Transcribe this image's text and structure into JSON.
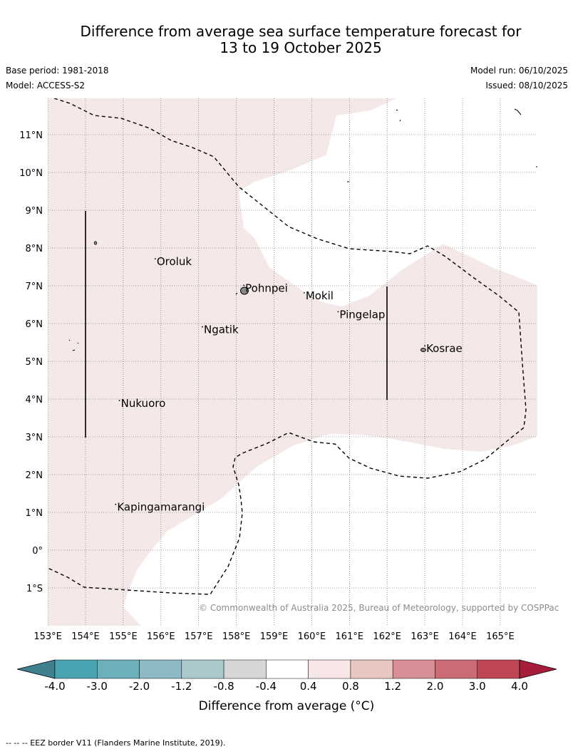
{
  "header": {
    "title_line1": "Difference from average sea surface temperature forecast for",
    "title_line2": "13 to 19 October 2025",
    "base_period": "Base period: 1981-2018",
    "model": "Model: ACCESS-S2",
    "model_run": "Model run: 06/10/2025",
    "issued": "Issued: 08/10/2025"
  },
  "map": {
    "lon_ticks": [
      "153°E",
      "154°E",
      "155°E",
      "156°E",
      "157°E",
      "158°E",
      "159°E",
      "160°E",
      "161°E",
      "162°E",
      "163°E",
      "164°E",
      "165°E"
    ],
    "lat_ticks": [
      "11°N",
      "10°N",
      "9°N",
      "8°N",
      "7°N",
      "6°N",
      "5°N",
      "4°N",
      "3°N",
      "2°N",
      "1°N",
      "0°",
      "1°S"
    ],
    "places": [
      {
        "name": "Oroluk",
        "lon": 155.85,
        "lat": 7.6
      },
      {
        "name": "Pohnpei",
        "lon": 158.2,
        "lat": 6.9
      },
      {
        "name": "Mokil",
        "lon": 159.8,
        "lat": 6.7
      },
      {
        "name": "Pingelap",
        "lon": 160.7,
        "lat": 6.2
      },
      {
        "name": "Ngatik",
        "lon": 157.1,
        "lat": 5.8
      },
      {
        "name": "Kosrae",
        "lon": 163.0,
        "lat": 5.3
      },
      {
        "name": "Nukuoro",
        "lon": 154.9,
        "lat": 3.85
      },
      {
        "name": "Kapingamarangi",
        "lon": 154.8,
        "lat": 1.1
      }
    ],
    "shading_color": "#f5e8e8",
    "copyright": "© Commonwealth of Australia 2025, Bureau of Meteorology, supported by COSPPac"
  },
  "colorbar": {
    "labels": [
      "-4.0",
      "-3.0",
      "-2.0",
      "-1.2",
      "-0.8",
      "-0.4",
      "0.4",
      "0.8",
      "1.2",
      "2.0",
      "3.0",
      "4.0"
    ],
    "colors": [
      "#3f7f8e",
      "#4aa3b2",
      "#6cb0bc",
      "#8dbac4",
      "#abc9cc",
      "#d4d7d6",
      "#ffffff",
      "#f7e8e7",
      "#e8c6c1",
      "#d98f96",
      "#cb6b75",
      "#c04655",
      "#a61d3a"
    ],
    "title": "Difference from average (°C)"
  },
  "footer": {
    "text": "--  --  -- EEZ border V11 (Flanders Marine Institute, 2019)."
  }
}
